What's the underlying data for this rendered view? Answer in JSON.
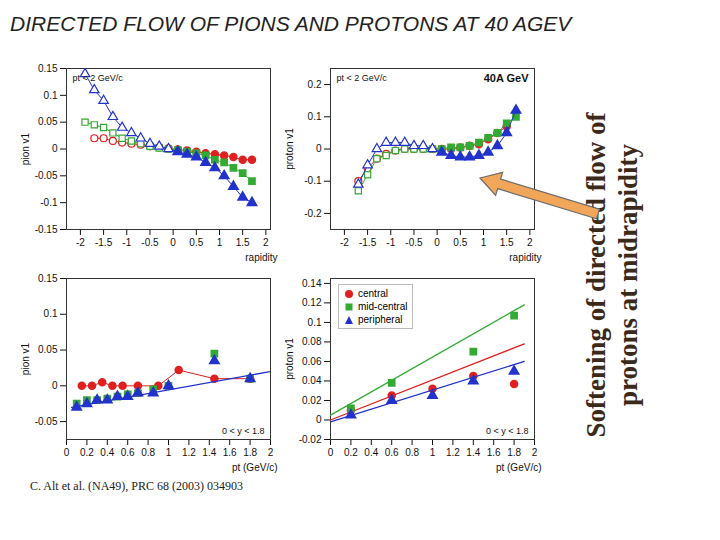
{
  "title": "DIRECTED FLOW OF PIONS AND PROTONS AT 40 AGEV",
  "annotation": [
    "Softening of directed flow of",
    "protons at midrapidity"
  ],
  "citation": "C. Alt et al. (NA49), PRC 68 (2003) 034903",
  "chart_data": [
    {
      "type": "scatter",
      "x_label": "rapidity",
      "y_label": "pion v1",
      "annotations": [
        "pt < 2 GeV/c"
      ],
      "xlim": [
        -2.3,
        2.1
      ],
      "xticks": [
        -2,
        -1.5,
        -1,
        -0.5,
        0,
        0.5,
        1,
        1.5,
        2
      ],
      "ylim": [
        -0.15,
        0.15
      ],
      "yticks": [
        -0.15,
        -0.1,
        -0.05,
        0,
        0.05,
        0.1,
        0.15
      ],
      "series": [
        {
          "name": "central",
          "color": "#e02020",
          "marker": "circle",
          "line_style": "solid",
          "x": [
            -1.7,
            -1.5,
            -1.3,
            -1.1,
            -0.9,
            -0.7,
            -0.5,
            -0.3,
            -0.1,
            0.1,
            0.3,
            0.5,
            0.7,
            0.9,
            1.1,
            1.3,
            1.5,
            1.7
          ],
          "values": [
            0.02,
            0.02,
            0.015,
            0.012,
            0.01,
            0.008,
            0.005,
            0.003,
            0.001,
            -0.001,
            -0.003,
            -0.005,
            -0.008,
            -0.01,
            -0.012,
            -0.015,
            -0.02,
            -0.02
          ]
        },
        {
          "name": "mid-central",
          "color": "#33aa33",
          "marker": "square",
          "line_style": "solid",
          "x": [
            -1.9,
            -1.7,
            -1.5,
            -1.3,
            -1.1,
            -0.9,
            -0.7,
            -0.5,
            -0.3,
            -0.1,
            0.1,
            0.3,
            0.5,
            0.7,
            0.9,
            1.1,
            1.3,
            1.5,
            1.7
          ],
          "values": [
            0.05,
            0.045,
            0.04,
            0.03,
            0.02,
            0.015,
            0.01,
            0.005,
            0.002,
            0.0,
            -0.002,
            -0.005,
            -0.008,
            -0.012,
            -0.02,
            -0.025,
            -0.035,
            -0.045,
            -0.06
          ]
        },
        {
          "name": "peripheral",
          "color": "#2233cc",
          "marker": "triangle",
          "line_style": "solid",
          "x": [
            -1.9,
            -1.7,
            -1.5,
            -1.3,
            -1.1,
            -0.9,
            -0.7,
            -0.5,
            -0.3,
            -0.1,
            0.1,
            0.3,
            0.5,
            0.7,
            0.9,
            1.1,
            1.3,
            1.5,
            1.7
          ],
          "values": [
            0.14,
            0.11,
            0.09,
            0.06,
            0.04,
            0.03,
            0.02,
            0.01,
            0.005,
            0.0,
            -0.005,
            -0.01,
            -0.015,
            -0.025,
            -0.035,
            -0.05,
            -0.07,
            -0.09,
            -0.1
          ]
        }
      ]
    },
    {
      "type": "scatter",
      "x_label": "rapidity",
      "y_label": "proton v1",
      "annotations": [
        "pt < 2 GeV/c",
        "40A GeV"
      ],
      "xlim": [
        -2.3,
        2.1
      ],
      "xticks": [
        -2,
        -1.5,
        -1,
        -0.5,
        0,
        0.5,
        1,
        1.5,
        2
      ],
      "ylim": [
        -0.25,
        0.25
      ],
      "yticks": [
        -0.2,
        -0.1,
        0,
        0.1,
        0.2
      ],
      "series": [
        {
          "name": "central",
          "color": "#e02020",
          "marker": "circle",
          "line_style": "solid",
          "x": [
            -1.7,
            -1.5,
            -1.3,
            -1.1,
            -0.9,
            -0.7,
            -0.5,
            -0.3,
            -0.1,
            0.1,
            0.3,
            0.5,
            0.7,
            0.9,
            1.1,
            1.3,
            1.5
          ],
          "values": [
            -0.1,
            -0.06,
            -0.03,
            -0.015,
            -0.005,
            0.0,
            0.0,
            0.0,
            0.0,
            0.0,
            0.0,
            0.005,
            0.01,
            0.015,
            0.03,
            0.05,
            0.07
          ]
        },
        {
          "name": "mid-central",
          "color": "#33aa33",
          "marker": "square",
          "line_style": "solid",
          "x": [
            -1.7,
            -1.5,
            -1.3,
            -1.1,
            -0.9,
            -0.7,
            -0.5,
            -0.3,
            -0.1,
            0.1,
            0.3,
            0.5,
            0.7,
            0.9,
            1.1,
            1.3,
            1.5,
            1.7
          ],
          "values": [
            -0.13,
            -0.08,
            -0.03,
            -0.02,
            -0.005,
            0.0,
            0.0,
            0.0,
            0.0,
            0.0,
            0.005,
            0.005,
            0.01,
            0.02,
            0.035,
            0.05,
            0.08,
            0.1
          ]
        },
        {
          "name": "peripheral",
          "color": "#2233cc",
          "marker": "triangle",
          "line_style": "solid",
          "x": [
            -1.7,
            -1.5,
            -1.3,
            -1.1,
            -0.9,
            -0.7,
            -0.5,
            -0.3,
            -0.1,
            0.1,
            0.3,
            0.5,
            0.7,
            0.9,
            1.1,
            1.3,
            1.5,
            1.7
          ],
          "values": [
            -0.11,
            -0.05,
            0.0,
            0.02,
            0.02,
            0.02,
            0.01,
            0.01,
            0.0,
            -0.01,
            -0.02,
            -0.025,
            -0.025,
            -0.02,
            -0.01,
            0.01,
            0.05,
            0.12
          ]
        }
      ]
    },
    {
      "type": "scatter",
      "x_label": "pt (GeV/c)",
      "y_label": "pion v1",
      "annotations": [
        "0 < y < 1.8"
      ],
      "xlim": [
        0,
        2
      ],
      "xticks": [
        0,
        0.2,
        0.4,
        0.6,
        0.8,
        1,
        1.2,
        1.4,
        1.6,
        1.8,
        2
      ],
      "ylim": [
        -0.075,
        0.15
      ],
      "yticks": [
        -0.05,
        0,
        0.05,
        0.1,
        0.15
      ],
      "series": [
        {
          "name": "central",
          "color": "#e02020",
          "marker": "circle",
          "line_style": "solid",
          "x": [
            0.15,
            0.25,
            0.35,
            0.45,
            0.55,
            0.7,
            0.9,
            1.1,
            1.45,
            1.8
          ],
          "values": [
            0.0,
            0.0,
            0.005,
            0.0,
            0.0,
            0.0,
            0.0,
            0.022,
            0.01,
            0.01
          ]
        },
        {
          "name": "mid-central",
          "color": "#33aa33",
          "marker": "square",
          "x": [
            0.1,
            0.2,
            0.3,
            0.4,
            0.5,
            0.6,
            0.7,
            0.85,
            1.0,
            1.45,
            1.8
          ],
          "values": [
            -0.025,
            -0.02,
            -0.02,
            -0.018,
            -0.015,
            -0.012,
            -0.01,
            -0.005,
            0.0,
            0.045,
            0.01
          ]
        },
        {
          "name": "peripheral",
          "color": "#2233cc",
          "marker": "triangle",
          "x": [
            0.1,
            0.2,
            0.3,
            0.4,
            0.5,
            0.6,
            0.7,
            0.85,
            1.0,
            1.45,
            1.8
          ],
          "values": [
            -0.03,
            -0.025,
            -0.02,
            -0.02,
            -0.015,
            -0.015,
            -0.01,
            -0.01,
            0.0,
            0.035,
            0.01
          ],
          "fit": {
            "x": [
              0.05,
              2
            ],
            "values": [
              -0.03,
              0.02
            ]
          }
        }
      ]
    },
    {
      "type": "scatter",
      "x_label": "pt (GeV/c)",
      "y_label": "proton v1",
      "annotations": [
        "0 < y < 1.8"
      ],
      "legend": "top-left",
      "xlim": [
        0,
        2
      ],
      "xticks": [
        0,
        0.2,
        0.4,
        0.6,
        0.8,
        1,
        1.2,
        1.4,
        1.6,
        1.8,
        2
      ],
      "ylim": [
        -0.02,
        0.145
      ],
      "yticks": [
        -0.02,
        0,
        0.02,
        0.04,
        0.06,
        0.08,
        0.1,
        0.12,
        0.14
      ],
      "series": [
        {
          "name": "central",
          "color": "#e02020",
          "marker": "circle",
          "x": [
            0.2,
            0.6,
            1.0,
            1.4,
            1.8
          ],
          "values": [
            0.01,
            0.025,
            0.032,
            0.045,
            0.037
          ],
          "fit": {
            "x": [
              0,
              1.9
            ],
            "values": [
              0.0,
              0.078
            ]
          }
        },
        {
          "name": "mid-central",
          "color": "#33aa33",
          "marker": "square",
          "x": [
            0.2,
            0.6,
            1.4,
            1.8
          ],
          "values": [
            0.012,
            0.038,
            0.07,
            0.107
          ],
          "fit": {
            "x": [
              0,
              1.9
            ],
            "values": [
              0.005,
              0.118
            ]
          }
        },
        {
          "name": "peripheral",
          "color": "#2233cc",
          "marker": "triangle",
          "x": [
            0.2,
            0.6,
            1.0,
            1.4,
            1.8
          ],
          "values": [
            0.005,
            0.02,
            0.025,
            0.04,
            0.05
          ],
          "fit": {
            "x": [
              0,
              1.9
            ],
            "values": [
              -0.002,
              0.06
            ]
          }
        }
      ]
    }
  ]
}
